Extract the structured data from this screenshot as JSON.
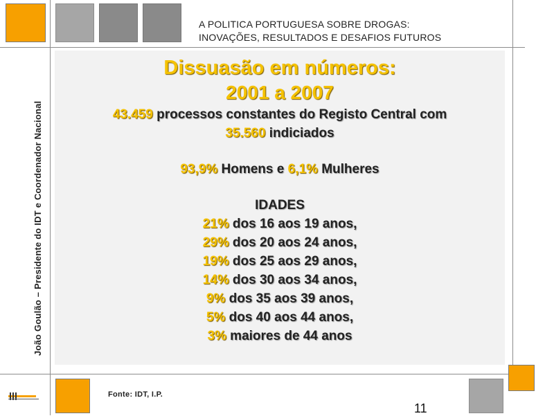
{
  "header": {
    "title_line1": "A POLITICA PORTUGUESA SOBRE DROGAS:",
    "title_line2": "INOVAÇÕES, RESULTADOS E DESAFIOS FUTUROS"
  },
  "sidebar": {
    "author": "João Goulão – Presidente do IDT e Coordenador Nacional"
  },
  "slide": {
    "title_line1": "Dissuasão em números:",
    "title_line2": "2001 a 2007",
    "processes": {
      "number": "43.459",
      "text": " processos constantes do Registo Central com"
    },
    "accused": {
      "number": "35.560",
      "text": " indiciados"
    },
    "gender": {
      "men_pct": "93,9%",
      "men_text": " Homens e ",
      "women_pct": "6,1%",
      "women_text": " Mulheres"
    },
    "ages_heading": "IDADES",
    "ages": [
      {
        "pct": "21%",
        "text": " dos 16 aos 19 anos,"
      },
      {
        "pct": "29%",
        "text": " dos 20 aos 24 anos,"
      },
      {
        "pct": "19%",
        "text": " dos 25 aos 29 anos,"
      },
      {
        "pct": "14%",
        "text": " dos 30 aos 34 anos,"
      },
      {
        "pct": "9%",
        "text": " dos 35 aos 39 anos,"
      },
      {
        "pct": "5%",
        "text": " dos 40 aos 44 anos,"
      },
      {
        "pct": "3%",
        "text": " maiores de 44 anos"
      }
    ]
  },
  "footer": {
    "source": "Fonte: IDT, I.P.",
    "page_number": "11"
  },
  "colors": {
    "accent_orange": "#f7a000",
    "highlight_yellow": "#f5c200",
    "panel_gray": "#f2f2f2"
  }
}
